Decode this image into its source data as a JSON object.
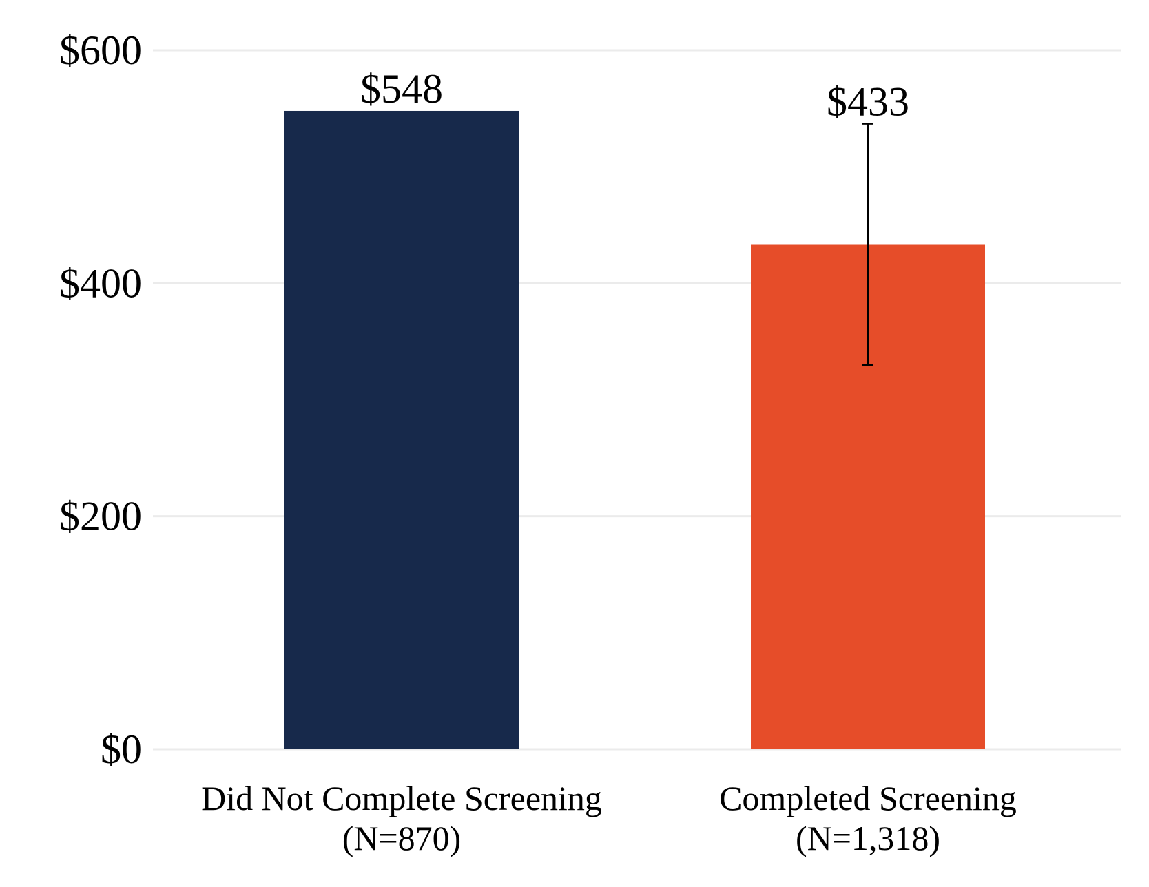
{
  "chart_data": {
    "type": "bar",
    "title": "",
    "xlabel": "",
    "ylabel": "",
    "ylim": [
      0,
      600
    ],
    "y_ticks": [
      0,
      200,
      400,
      600
    ],
    "y_tick_labels": [
      "$0",
      "$200",
      "$400",
      "$600"
    ],
    "grid": "horizontal",
    "legend": "none",
    "categories": [
      [
        "Did Not Complete Screening",
        "(N=870)"
      ],
      [
        "Completed Screening",
        "(N=1,318)"
      ]
    ],
    "values": [
      548,
      433
    ],
    "value_labels": [
      "$548",
      "$433"
    ],
    "error_bars": [
      null,
      {
        "low": 330,
        "high": 537
      }
    ],
    "colors": [
      "#17294b",
      "#e64d29"
    ]
  }
}
